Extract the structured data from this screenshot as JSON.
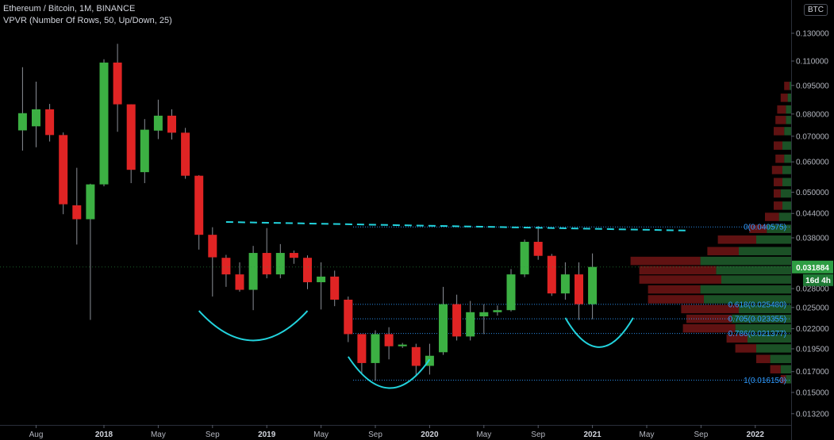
{
  "header": {
    "title": "Ethereum / Bitcoin, 1M, BINANCE",
    "indicator": "VPVR (Number Of Rows, 50, Up/Down, 25)",
    "currency": "BTC"
  },
  "colors": {
    "up": "#3cb043",
    "down": "#e02424",
    "wick": "#8a8e96",
    "fib": "#2f9bff",
    "resistance": "#22d3dd",
    "arc": "#22d3dd",
    "vp_up": "#1e5a2a",
    "vp_down": "#6a1414",
    "price_badge": "#2e9d43"
  },
  "chart_data": {
    "type": "candlestick",
    "title": "Ethereum / Bitcoin, 1M, BINANCE",
    "scale": "log",
    "ylim": [
      0.0125,
      0.152
    ],
    "y_ticks": [
      "0.130000",
      "0.110000",
      "0.095000",
      "0.080000",
      "0.070000",
      "0.060000",
      "0.050000",
      "0.044000",
      "0.038000",
      "0.031884",
      "0.028000",
      "0.025000",
      "0.022000",
      "0.019500",
      "0.017000",
      "0.015000",
      "0.013200"
    ],
    "x_ticks": [
      "Aug",
      "2018",
      "May",
      "Sep",
      "2019",
      "May",
      "Sep",
      "2020",
      "May",
      "Sep",
      "2021",
      "May",
      "Sep",
      "2022"
    ],
    "candles": [
      {
        "date": "2017-07",
        "open": 0.0725,
        "high": 0.106,
        "low": 0.0642,
        "close": 0.0804
      },
      {
        "date": "2017-08",
        "open": 0.0743,
        "high": 0.0972,
        "low": 0.0655,
        "close": 0.0823
      },
      {
        "date": "2017-09",
        "open": 0.0823,
        "high": 0.085,
        "low": 0.0678,
        "close": 0.0705
      },
      {
        "date": "2017-10",
        "open": 0.0705,
        "high": 0.0716,
        "low": 0.0438,
        "close": 0.0465
      },
      {
        "date": "2017-11",
        "open": 0.0462,
        "high": 0.0579,
        "low": 0.0365,
        "close": 0.0425
      },
      {
        "date": "2017-12",
        "open": 0.0425,
        "high": 0.0526,
        "low": 0.0232,
        "close": 0.0524
      },
      {
        "date": "2018-01",
        "open": 0.0524,
        "high": 0.1112,
        "low": 0.0518,
        "close": 0.109
      },
      {
        "date": "2018-02",
        "open": 0.109,
        "high": 0.122,
        "low": 0.0719,
        "close": 0.0848
      },
      {
        "date": "2018-03",
        "open": 0.0848,
        "high": 0.0848,
        "low": 0.0528,
        "close": 0.0572
      },
      {
        "date": "2018-04",
        "open": 0.0564,
        "high": 0.0776,
        "low": 0.0528,
        "close": 0.0728
      },
      {
        "date": "2018-05",
        "open": 0.0724,
        "high": 0.0872,
        "low": 0.0688,
        "close": 0.0792
      },
      {
        "date": "2018-06",
        "open": 0.0792,
        "high": 0.0823,
        "low": 0.0686,
        "close": 0.0715
      },
      {
        "date": "2018-07",
        "open": 0.0715,
        "high": 0.0736,
        "low": 0.0542,
        "close": 0.0552
      },
      {
        "date": "2018-08",
        "open": 0.0552,
        "high": 0.0554,
        "low": 0.0354,
        "close": 0.0387
      },
      {
        "date": "2018-09",
        "open": 0.0387,
        "high": 0.0405,
        "low": 0.0267,
        "close": 0.0338
      },
      {
        "date": "2018-10",
        "open": 0.0337,
        "high": 0.0343,
        "low": 0.0283,
        "close": 0.0305
      },
      {
        "date": "2018-11",
        "open": 0.0305,
        "high": 0.0328,
        "low": 0.0275,
        "close": 0.0278
      },
      {
        "date": "2018-12",
        "open": 0.0278,
        "high": 0.0362,
        "low": 0.0246,
        "close": 0.0347
      },
      {
        "date": "2019-01",
        "open": 0.0347,
        "high": 0.0403,
        "low": 0.0298,
        "close": 0.0305
      },
      {
        "date": "2019-02",
        "open": 0.0305,
        "high": 0.0366,
        "low": 0.0298,
        "close": 0.0347
      },
      {
        "date": "2019-03",
        "open": 0.0347,
        "high": 0.0352,
        "low": 0.0325,
        "close": 0.0337
      },
      {
        "date": "2019-04",
        "open": 0.0337,
        "high": 0.0342,
        "low": 0.0279,
        "close": 0.0291
      },
      {
        "date": "2019-05",
        "open": 0.0291,
        "high": 0.0328,
        "low": 0.0247,
        "close": 0.0301
      },
      {
        "date": "2019-06",
        "open": 0.0301,
        "high": 0.0312,
        "low": 0.0252,
        "close": 0.0262
      },
      {
        "date": "2019-07",
        "open": 0.0262,
        "high": 0.0267,
        "low": 0.0203,
        "close": 0.0213
      },
      {
        "date": "2019-08",
        "open": 0.0213,
        "high": 0.0213,
        "low": 0.0167,
        "close": 0.0179
      },
      {
        "date": "2019-09",
        "open": 0.0179,
        "high": 0.0218,
        "low": 0.0161,
        "close": 0.0213
      },
      {
        "date": "2019-10",
        "open": 0.0213,
        "high": 0.0222,
        "low": 0.0183,
        "close": 0.0198
      },
      {
        "date": "2019-11",
        "open": 0.0198,
        "high": 0.0202,
        "low": 0.0196,
        "close": 0.02
      },
      {
        "date": "2019-12",
        "open": 0.0197,
        "high": 0.0201,
        "low": 0.0166,
        "close": 0.0176
      },
      {
        "date": "2020-01",
        "open": 0.0176,
        "high": 0.0201,
        "low": 0.0167,
        "close": 0.0187
      },
      {
        "date": "2020-02",
        "open": 0.0191,
        "high": 0.0283,
        "low": 0.0188,
        "close": 0.0255
      },
      {
        "date": "2020-03",
        "open": 0.0255,
        "high": 0.027,
        "low": 0.0205,
        "close": 0.021
      },
      {
        "date": "2020-04",
        "open": 0.021,
        "high": 0.026,
        "low": 0.0205,
        "close": 0.0243
      },
      {
        "date": "2020-05",
        "open": 0.0237,
        "high": 0.0255,
        "low": 0.0213,
        "close": 0.0243
      },
      {
        "date": "2020-06",
        "open": 0.0243,
        "high": 0.0253,
        "low": 0.0238,
        "close": 0.0246
      },
      {
        "date": "2020-07",
        "open": 0.0246,
        "high": 0.0315,
        "low": 0.0244,
        "close": 0.0305
      },
      {
        "date": "2020-08",
        "open": 0.0305,
        "high": 0.0376,
        "low": 0.03,
        "close": 0.0371
      },
      {
        "date": "2020-09",
        "open": 0.0371,
        "high": 0.0408,
        "low": 0.0333,
        "close": 0.0341
      },
      {
        "date": "2020-10",
        "open": 0.0341,
        "high": 0.0345,
        "low": 0.0268,
        "close": 0.0272
      },
      {
        "date": "2020-11",
        "open": 0.0272,
        "high": 0.0328,
        "low": 0.0262,
        "close": 0.0305
      },
      {
        "date": "2020-12",
        "open": 0.0305,
        "high": 0.0328,
        "low": 0.0232,
        "close": 0.0255
      },
      {
        "date": "2021-01",
        "open": 0.0255,
        "high": 0.0346,
        "low": 0.0233,
        "close": 0.0319
      }
    ],
    "fib_levels": [
      {
        "ratio": "0",
        "value": 0.040575,
        "label": "0(0.040575)"
      },
      {
        "ratio": "0.618",
        "value": 0.02548,
        "label": "0.618(0.025480)"
      },
      {
        "ratio": "0.705",
        "value": 0.023355,
        "label": "0.705(0.023355)"
      },
      {
        "ratio": "0.786",
        "value": 0.021377,
        "label": "0.786(0.021377)"
      },
      {
        "ratio": "1",
        "value": 0.01615,
        "label": "1(0.016150)"
      }
    ],
    "resistance_line": {
      "from": {
        "date": "2018-10",
        "value": 0.0418
      },
      "to": {
        "date": "2021-08",
        "value": 0.0397
      }
    },
    "pattern_arcs": [
      {
        "from": {
          "date": "2018-08",
          "value": 0.0245
        },
        "to": {
          "date": "2019-04",
          "value": 0.0245
        },
        "depth": 0.0205
      },
      {
        "from": {
          "date": "2019-07",
          "value": 0.0186
        },
        "to": {
          "date": "2020-01",
          "value": 0.0183
        },
        "depth": 0.0154
      },
      {
        "from": {
          "date": "2020-11",
          "value": 0.0235
        },
        "to": {
          "date": "2021-04",
          "value": 0.0235
        },
        "depth": 0.0197
      }
    ],
    "last_price": {
      "value": 0.031884,
      "label": "0.031884",
      "countdown": "16d 4h"
    },
    "volume_profile": [
      {
        "value": 0.0945,
        "up": 0.01,
        "down": 0.03
      },
      {
        "value": 0.088,
        "up": 0.02,
        "down": 0.04
      },
      {
        "value": 0.082,
        "up": 0.03,
        "down": 0.05
      },
      {
        "value": 0.077,
        "up": 0.03,
        "down": 0.06
      },
      {
        "value": 0.072,
        "up": 0.04,
        "down": 0.06
      },
      {
        "value": 0.066,
        "up": 0.05,
        "down": 0.05
      },
      {
        "value": 0.061,
        "up": 0.04,
        "down": 0.05
      },
      {
        "value": 0.057,
        "up": 0.05,
        "down": 0.06
      },
      {
        "value": 0.053,
        "up": 0.05,
        "down": 0.05
      },
      {
        "value": 0.0495,
        "up": 0.06,
        "down": 0.04
      },
      {
        "value": 0.046,
        "up": 0.05,
        "down": 0.05
      },
      {
        "value": 0.043,
        "up": 0.07,
        "down": 0.08
      },
      {
        "value": 0.04,
        "up": 0.14,
        "down": 0.1
      },
      {
        "value": 0.0375,
        "up": 0.2,
        "down": 0.22
      },
      {
        "value": 0.035,
        "up": 0.3,
        "down": 0.18
      },
      {
        "value": 0.033,
        "up": 0.52,
        "down": 0.4
      },
      {
        "value": 0.0312,
        "up": 0.43,
        "down": 0.44
      },
      {
        "value": 0.0295,
        "up": 0.4,
        "down": 0.47
      },
      {
        "value": 0.0278,
        "up": 0.52,
        "down": 0.3
      },
      {
        "value": 0.0262,
        "up": 0.5,
        "down": 0.32
      },
      {
        "value": 0.0247,
        "up": 0.3,
        "down": 0.33
      },
      {
        "value": 0.0233,
        "up": 0.34,
        "down": 0.26
      },
      {
        "value": 0.022,
        "up": 0.32,
        "down": 0.3
      },
      {
        "value": 0.0207,
        "up": 0.25,
        "down": 0.12
      },
      {
        "value": 0.0195,
        "up": 0.2,
        "down": 0.12
      },
      {
        "value": 0.0183,
        "up": 0.12,
        "down": 0.08
      },
      {
        "value": 0.0172,
        "up": 0.06,
        "down": 0.06
      },
      {
        "value": 0.0162,
        "up": 0.03,
        "down": 0.03
      }
    ]
  }
}
